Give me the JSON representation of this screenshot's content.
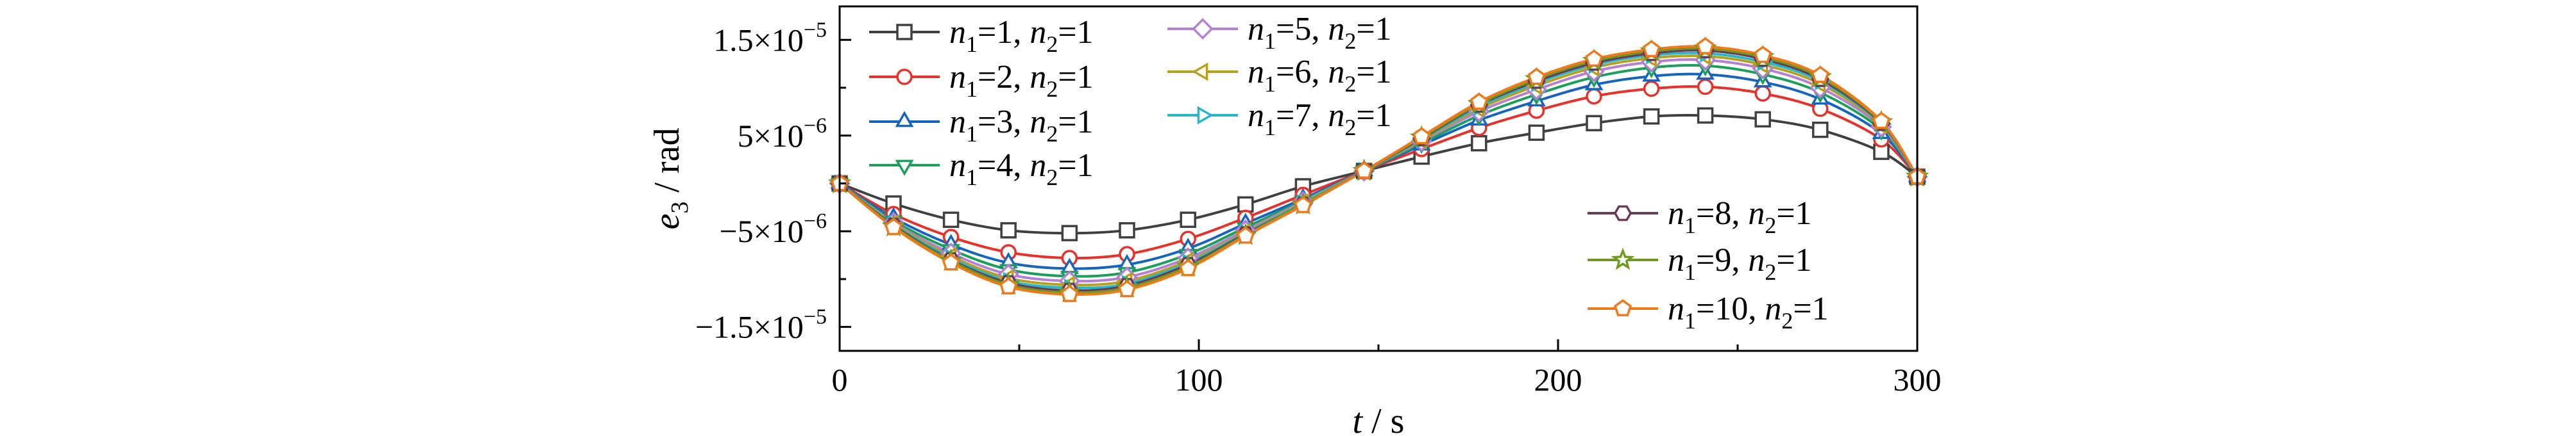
{
  "chart_data": {
    "type": "line",
    "xlabel": "t / s",
    "ylabel": "e3 / rad",
    "xlim": [
      0,
      300
    ],
    "ylim": [
      -1.75e-05,
      1.85e-05
    ],
    "x_ticks": [
      "0",
      "100",
      "200",
      "300"
    ],
    "y_ticks": [
      {
        "value": 1.5e-05,
        "mantissa": "1.5×10",
        "exp": "−5"
      },
      {
        "value": 5e-06,
        "mantissa": "5×10",
        "exp": "−6"
      },
      {
        "value": -5e-06,
        "mantissa": "−5×10",
        "exp": "−6"
      },
      {
        "value": -1.5e-05,
        "mantissa": "−1.5×10",
        "exp": "−5"
      }
    ],
    "grid": false,
    "x": [
      0,
      15,
      31,
      47,
      64,
      80,
      97,
      113,
      129,
      146,
      162,
      178,
      194,
      210,
      226,
      241,
      257,
      273,
      290,
      300
    ],
    "series": [
      {
        "name": "n1=1, n2=1",
        "n1": "1",
        "n2": "1",
        "color": "#404040",
        "marker": "square",
        "values": [
          0,
          -2.1e-06,
          -3.8e-06,
          -4.9e-06,
          -5.2e-06,
          -4.9e-06,
          -3.8e-06,
          -2.2e-06,
          -3e-07,
          1.3e-06,
          2.8e-06,
          4.2e-06,
          5.3e-06,
          6.3e-06,
          7e-06,
          7.1e-06,
          6.7e-06,
          5.6e-06,
          3.3e-06,
          7e-07
        ]
      },
      {
        "name": "n1=2, n2=1",
        "n1": "2",
        "n2": "1",
        "color": "#e8312a",
        "marker": "circle",
        "values": [
          0,
          -3.2e-06,
          -5.6e-06,
          -7.2e-06,
          -7.8e-06,
          -7.4e-06,
          -5.8e-06,
          -3.6e-06,
          -1.2e-06,
          1.3e-06,
          3.6e-06,
          5.8e-06,
          7.6e-06,
          9.1e-06,
          9.9e-06,
          1.01e-05,
          9.4e-06,
          7.8e-06,
          4.6e-06,
          7e-07
        ]
      },
      {
        "name": "n1=3, n2=1",
        "n1": "3",
        "n2": "1",
        "color": "#1565c0",
        "marker": "triangle-up",
        "values": [
          0,
          -3.6e-06,
          -6.4e-06,
          -8.3e-06,
          -8.9e-06,
          -8.5e-06,
          -6.8e-06,
          -4.2e-06,
          -1.6e-06,
          1.3e-06,
          4e-06,
          6.6e-06,
          8.6e-06,
          1.03e-05,
          1.12e-05,
          1.14e-05,
          1.06e-05,
          8.8e-06,
          5.2e-06,
          7e-07
        ]
      },
      {
        "name": "n1=4, n2=1",
        "n1": "4",
        "n2": "1",
        "color": "#1aa05a",
        "marker": "triangle-down",
        "values": [
          0,
          -3.9e-06,
          -6.9e-06,
          -9e-06,
          -9.7e-06,
          -9.3e-06,
          -7.4e-06,
          -4.6e-06,
          -1.8e-06,
          1.3e-06,
          4.2e-06,
          7.1e-06,
          9.3e-06,
          1.11e-05,
          1.21e-05,
          1.23e-05,
          1.14e-05,
          9.5e-06,
          5.6e-06,
          7e-07
        ]
      },
      {
        "name": "n1=5, n2=1",
        "n1": "5",
        "n2": "1",
        "color": "#b57fd6",
        "marker": "diamond",
        "values": [
          0,
          -4.1e-06,
          -7.3e-06,
          -9.5e-06,
          -1.02e-05,
          -9.8e-06,
          -7.8e-06,
          -4.9e-06,
          -1.9e-06,
          1.3e-06,
          4.4e-06,
          7.5e-06,
          9.8e-06,
          1.17e-05,
          1.27e-05,
          1.29e-05,
          1.2e-05,
          1e-05,
          5.9e-06,
          7e-07
        ]
      },
      {
        "name": "n1=6, n2=1",
        "n1": "6",
        "n2": "1",
        "color": "#b8a01e",
        "marker": "triangle-left",
        "values": [
          0,
          -4.2e-06,
          -7.6e-06,
          -9.9e-06,
          -1.06e-05,
          -1.02e-05,
          -8.1e-06,
          -5.1e-06,
          -2e-06,
          1.3e-06,
          4.5e-06,
          7.8e-06,
          1.02e-05,
          1.21e-05,
          1.31e-05,
          1.33e-05,
          1.24e-05,
          1.04e-05,
          6.1e-06,
          7e-07
        ]
      },
      {
        "name": "n1=7, n2=1",
        "n1": "7",
        "n2": "1",
        "color": "#25b8c8",
        "marker": "triangle-right",
        "values": [
          0,
          -4.3e-06,
          -7.8e-06,
          -1.02e-05,
          -1.09e-05,
          -1.05e-05,
          -8.3e-06,
          -5.2e-06,
          -2.1e-06,
          1.3e-06,
          4.6e-06,
          8e-06,
          1.05e-05,
          1.24e-05,
          1.34e-05,
          1.36e-05,
          1.27e-05,
          1.07e-05,
          6.2e-06,
          7e-07
        ]
      },
      {
        "name": "n1=8, n2=1",
        "n1": "8",
        "n2": "1",
        "color": "#6b3a5a",
        "marker": "hexagon",
        "values": [
          0,
          -4.4e-06,
          -8e-06,
          -1.04e-05,
          -1.12e-05,
          -1.07e-05,
          -8.5e-06,
          -5.3e-06,
          -2.2e-06,
          1.3e-06,
          4.7e-06,
          8.2e-06,
          1.07e-05,
          1.26e-05,
          1.36e-05,
          1.39e-05,
          1.3e-05,
          1.09e-05,
          6.3e-06,
          7e-07
        ]
      },
      {
        "name": "n1=9, n2=1",
        "n1": "9",
        "n2": "1",
        "color": "#6f9a22",
        "marker": "star",
        "values": [
          0,
          -4.5e-06,
          -8.1e-06,
          -1.06e-05,
          -1.14e-05,
          -1.09e-05,
          -8.7e-06,
          -5.4e-06,
          -2.2e-06,
          1.3e-06,
          4.8e-06,
          8.3e-06,
          1.09e-05,
          1.28e-05,
          1.38e-05,
          1.41e-05,
          1.32e-05,
          1.11e-05,
          6.4e-06,
          7e-07
        ]
      },
      {
        "name": "n1=10, n2=1",
        "n1": "10",
        "n2": "1",
        "color": "#f07a1a",
        "marker": "pentagon",
        "values": [
          0,
          -4.6e-06,
          -8.3e-06,
          -1.08e-05,
          -1.16e-05,
          -1.11e-05,
          -8.9e-06,
          -5.5e-06,
          -2.3e-06,
          1.3e-06,
          4.9e-06,
          8.5e-06,
          1.11e-05,
          1.3e-05,
          1.4e-05,
          1.43e-05,
          1.34e-05,
          1.13e-05,
          6.5e-06,
          7e-07
        ]
      }
    ]
  }
}
